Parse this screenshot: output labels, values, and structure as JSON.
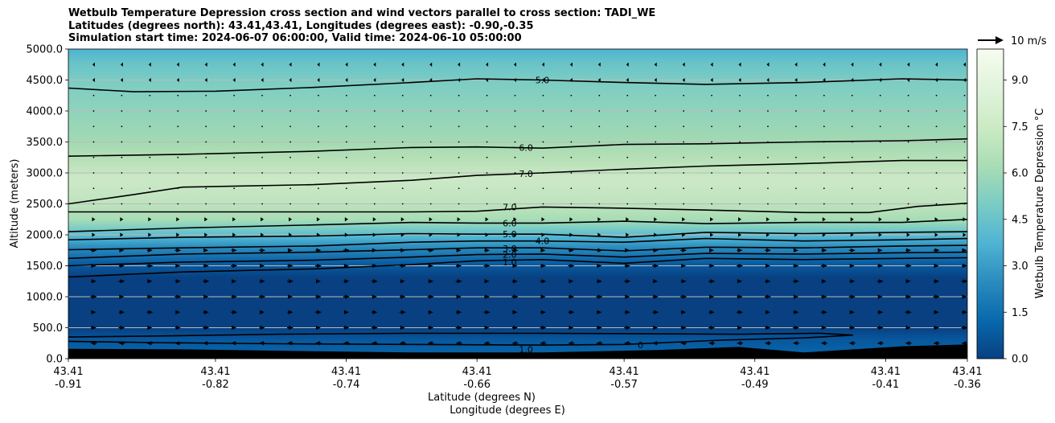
{
  "title_lines": [
    "Wetbulb Temperature Depression cross section and wind vectors parallel to cross section: TADI_WE",
    "Latitudes (degrees north): 43.41,43.41, Longitudes (degrees east): -0.90,-0.35",
    "Simulation start time: 2024-06-07 06:00:00, Valid time: 2024-06-10 05:00:00"
  ],
  "chart_data": {
    "type": "heatmap",
    "subtype": "vertical cross section with filled contours, contour lines and wind vectors",
    "ylabel": "Altitude (meters)",
    "xlabel_lines": [
      "Latitude (degrees N)",
      "Longitude (degrees E)"
    ],
    "ylim": [
      0,
      5000
    ],
    "y_ticks": [
      "0.0",
      "500.0",
      "1000.0",
      "1500.0",
      "2000.0",
      "2500.0",
      "3000.0",
      "3500.0",
      "4000.0",
      "4500.0",
      "5000.0"
    ],
    "x_ticks": [
      {
        "lat": "43.41",
        "lon": "-0.91"
      },
      {
        "lat": "43.41",
        "lon": "-0.82"
      },
      {
        "lat": "43.41",
        "lon": "-0.74"
      },
      {
        "lat": "43.41",
        "lon": "-0.66"
      },
      {
        "lat": "43.41",
        "lon": "-0.57"
      },
      {
        "lat": "43.41",
        "lon": "-0.49"
      },
      {
        "lat": "43.41",
        "lon": "-0.41"
      },
      {
        "lat": "43.41",
        "lon": "-0.36"
      }
    ],
    "colorbar": {
      "label": "Wetbulb Temperature Depression °C",
      "ticks": [
        "0.0",
        "1.5",
        "3.0",
        "4.5",
        "6.0",
        "7.5",
        "9.0"
      ],
      "range": [
        0,
        10
      ],
      "colormap": "GnBu reversed",
      "level_step": 0.5
    },
    "quiver_key": {
      "label": "10 m/s"
    },
    "contour_labels": [
      "1.0",
      "1.0",
      "2.0",
      "3.0",
      "4.0",
      "5.0",
      "6.0",
      "7.0",
      "7.0",
      "6.0",
      "5.0",
      "0"
    ],
    "contour_lines": [
      {
        "level": 1.0,
        "points": [
          [
            -0.91,
            350
          ],
          [
            -0.86,
            365
          ],
          [
            -0.78,
            395
          ],
          [
            -0.7,
            410
          ],
          [
            -0.62,
            410
          ],
          [
            -0.54,
            400
          ],
          [
            -0.5,
            395
          ],
          [
            -0.45,
            410
          ],
          [
            -0.43,
            380
          ],
          [
            -0.46,
            335
          ],
          [
            -0.51,
            300
          ],
          [
            -0.57,
            230
          ],
          [
            -0.62,
            220
          ],
          [
            -0.7,
            230
          ],
          [
            -0.78,
            240
          ],
          [
            -0.86,
            260
          ],
          [
            -0.91,
            280
          ]
        ]
      },
      {
        "level": 1.0,
        "points": [
          [
            -0.91,
            1320
          ],
          [
            -0.84,
            1400
          ],
          [
            -0.76,
            1450
          ],
          [
            -0.7,
            1520
          ],
          [
            -0.66,
            1580
          ],
          [
            -0.62,
            1600
          ],
          [
            -0.57,
            1540
          ],
          [
            -0.52,
            1620
          ],
          [
            -0.46,
            1600
          ],
          [
            -0.4,
            1620
          ],
          [
            -0.36,
            1630
          ]
        ]
      },
      {
        "level": 2.0,
        "points": [
          [
            -0.91,
            1500
          ],
          [
            -0.84,
            1560
          ],
          [
            -0.76,
            1590
          ],
          [
            -0.7,
            1640
          ],
          [
            -0.66,
            1680
          ],
          [
            -0.62,
            1690
          ],
          [
            -0.57,
            1640
          ],
          [
            -0.52,
            1700
          ],
          [
            -0.46,
            1690
          ],
          [
            -0.4,
            1710
          ],
          [
            -0.36,
            1720
          ]
        ]
      },
      {
        "level": 3.0,
        "points": [
          [
            -0.91,
            1620
          ],
          [
            -0.84,
            1690
          ],
          [
            -0.76,
            1720
          ],
          [
            -0.7,
            1760
          ],
          [
            -0.66,
            1790
          ],
          [
            -0.62,
            1790
          ],
          [
            -0.57,
            1740
          ],
          [
            -0.52,
            1800
          ],
          [
            -0.46,
            1790
          ],
          [
            -0.4,
            1820
          ],
          [
            -0.36,
            1830
          ]
        ]
      },
      {
        "level": 4.0,
        "points": [
          [
            -0.91,
            1760
          ],
          [
            -0.84,
            1790
          ],
          [
            -0.76,
            1820
          ],
          [
            -0.7,
            1880
          ],
          [
            -0.66,
            1900
          ],
          [
            -0.62,
            1900
          ],
          [
            -0.57,
            1880
          ],
          [
            -0.52,
            1940
          ],
          [
            -0.46,
            1900
          ],
          [
            -0.4,
            1920
          ],
          [
            -0.36,
            1940
          ]
        ]
      },
      {
        "level": 5.0,
        "points": [
          [
            -0.91,
            1920
          ],
          [
            -0.84,
            1960
          ],
          [
            -0.76,
            1980
          ],
          [
            -0.7,
            2020
          ],
          [
            -0.66,
            2010
          ],
          [
            -0.62,
            2010
          ],
          [
            -0.57,
            1960
          ],
          [
            -0.52,
            2040
          ],
          [
            -0.46,
            2020
          ],
          [
            -0.4,
            2040
          ],
          [
            -0.36,
            2050
          ]
        ]
      },
      {
        "level": 6.0,
        "points": [
          [
            -0.91,
            2050
          ],
          [
            -0.84,
            2110
          ],
          [
            -0.76,
            2160
          ],
          [
            -0.7,
            2200
          ],
          [
            -0.66,
            2190
          ],
          [
            -0.62,
            2190
          ],
          [
            -0.57,
            2220
          ],
          [
            -0.52,
            2180
          ],
          [
            -0.46,
            2200
          ],
          [
            -0.4,
            2200
          ],
          [
            -0.36,
            2250
          ]
        ]
      },
      {
        "level": 7.0,
        "points": [
          [
            -0.91,
            2370
          ],
          [
            -0.84,
            2370
          ],
          [
            -0.76,
            2370
          ],
          [
            -0.7,
            2370
          ],
          [
            -0.66,
            2380
          ],
          [
            -0.62,
            2450
          ],
          [
            -0.57,
            2430
          ],
          [
            -0.52,
            2400
          ],
          [
            -0.46,
            2360
          ],
          [
            -0.42,
            2360
          ],
          [
            -0.39,
            2460
          ],
          [
            -0.36,
            2510
          ]
        ]
      },
      {
        "level": 7.0,
        "points": [
          [
            -0.91,
            2500
          ],
          [
            -0.87,
            2650
          ],
          [
            -0.84,
            2770
          ],
          [
            -0.76,
            2810
          ],
          [
            -0.7,
            2880
          ],
          [
            -0.66,
            2960
          ],
          [
            -0.62,
            3000
          ],
          [
            -0.57,
            3060
          ],
          [
            -0.52,
            3110
          ],
          [
            -0.46,
            3150
          ],
          [
            -0.4,
            3200
          ],
          [
            -0.36,
            3200
          ]
        ]
      },
      {
        "level": 6.0,
        "points": [
          [
            -0.91,
            3270
          ],
          [
            -0.84,
            3300
          ],
          [
            -0.76,
            3350
          ],
          [
            -0.7,
            3410
          ],
          [
            -0.66,
            3420
          ],
          [
            -0.62,
            3400
          ],
          [
            -0.57,
            3460
          ],
          [
            -0.52,
            3470
          ],
          [
            -0.46,
            3500
          ],
          [
            -0.4,
            3520
          ],
          [
            -0.36,
            3550
          ]
        ]
      },
      {
        "level": 5.0,
        "points": [
          [
            -0.91,
            4370
          ],
          [
            -0.87,
            4310
          ],
          [
            -0.82,
            4320
          ],
          [
            -0.76,
            4380
          ],
          [
            -0.7,
            4460
          ],
          [
            -0.66,
            4520
          ],
          [
            -0.62,
            4500
          ],
          [
            -0.57,
            4460
          ],
          [
            -0.52,
            4430
          ],
          [
            -0.46,
            4460
          ],
          [
            -0.4,
            4520
          ],
          [
            -0.36,
            4500
          ]
        ]
      }
    ],
    "terrain": {
      "color": "#000000",
      "points": [
        [
          -0.91,
          160
        ],
        [
          -0.84,
          150
        ],
        [
          -0.76,
          120
        ],
        [
          -0.7,
          100
        ],
        [
          -0.62,
          100
        ],
        [
          -0.55,
          140
        ],
        [
          -0.5,
          190
        ],
        [
          -0.46,
          100
        ],
        [
          -0.4,
          200
        ],
        [
          -0.36,
          230
        ]
      ]
    }
  }
}
